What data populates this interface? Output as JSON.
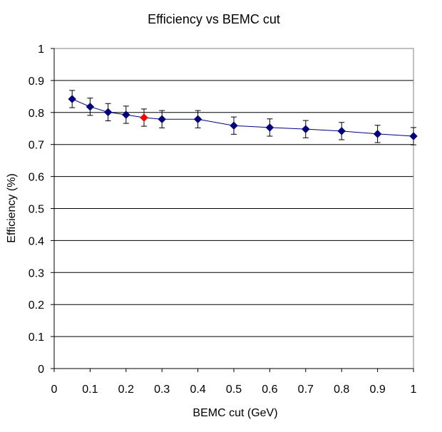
{
  "chart_data": {
    "type": "line",
    "title": "Efficiency vs BEMC cut",
    "xlabel": "BEMC cut (GeV)",
    "ylabel": "Efficiency (%)",
    "xlim": [
      0,
      1
    ],
    "ylim": [
      0,
      1
    ],
    "x_ticks": [
      "0",
      "0.1",
      "0.2",
      "0.3",
      "0.4",
      "0.5",
      "0.6",
      "0.7",
      "0.8",
      "0.9",
      "1"
    ],
    "y_ticks": [
      "0",
      "0.1",
      "0.2",
      "0.3",
      "0.4",
      "0.5",
      "0.6",
      "0.7",
      "0.8",
      "0.9",
      "1"
    ],
    "grid": "horizontal",
    "legend": "none",
    "series": [
      {
        "x": [
          0.05,
          0.1,
          0.15,
          0.2,
          0.25,
          0.3,
          0.4,
          0.5,
          0.6,
          0.7,
          0.8,
          0.9,
          1.0
        ],
        "y": [
          0.842,
          0.818,
          0.801,
          0.793,
          0.784,
          0.779,
          0.779,
          0.759,
          0.753,
          0.748,
          0.742,
          0.733,
          0.726
        ],
        "yerr": [
          0.027,
          0.027,
          0.027,
          0.027,
          0.027,
          0.027,
          0.027,
          0.027,
          0.027,
          0.027,
          0.027,
          0.027,
          0.027
        ],
        "highlighted_point_index": 4,
        "color": "#000080",
        "highlight_color": "#ff0000"
      }
    ]
  }
}
